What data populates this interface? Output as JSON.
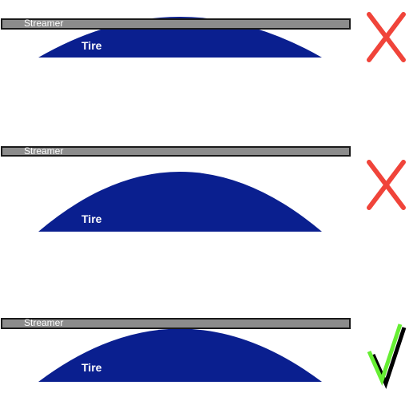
{
  "scenarios": [
    {
      "streamer_label": "Streamer",
      "tire_label": "Tire",
      "verdict": "incorrect",
      "verdict_icon": "x-mark-icon"
    },
    {
      "streamer_label": "Streamer",
      "tire_label": "Tire",
      "verdict": "incorrect",
      "verdict_icon": "x-mark-icon"
    },
    {
      "streamer_label": "Streamer",
      "tire_label": "Tire",
      "verdict": "correct",
      "verdict_icon": "check-mark-icon"
    }
  ],
  "colors": {
    "tire": "#0a1f8f",
    "streamer_fill": "#8c8c8c",
    "streamer_stroke": "#1a1a1a",
    "x_mark": "#f0443a",
    "check_mark": "#66ee33",
    "check_shadow": "#000000"
  }
}
